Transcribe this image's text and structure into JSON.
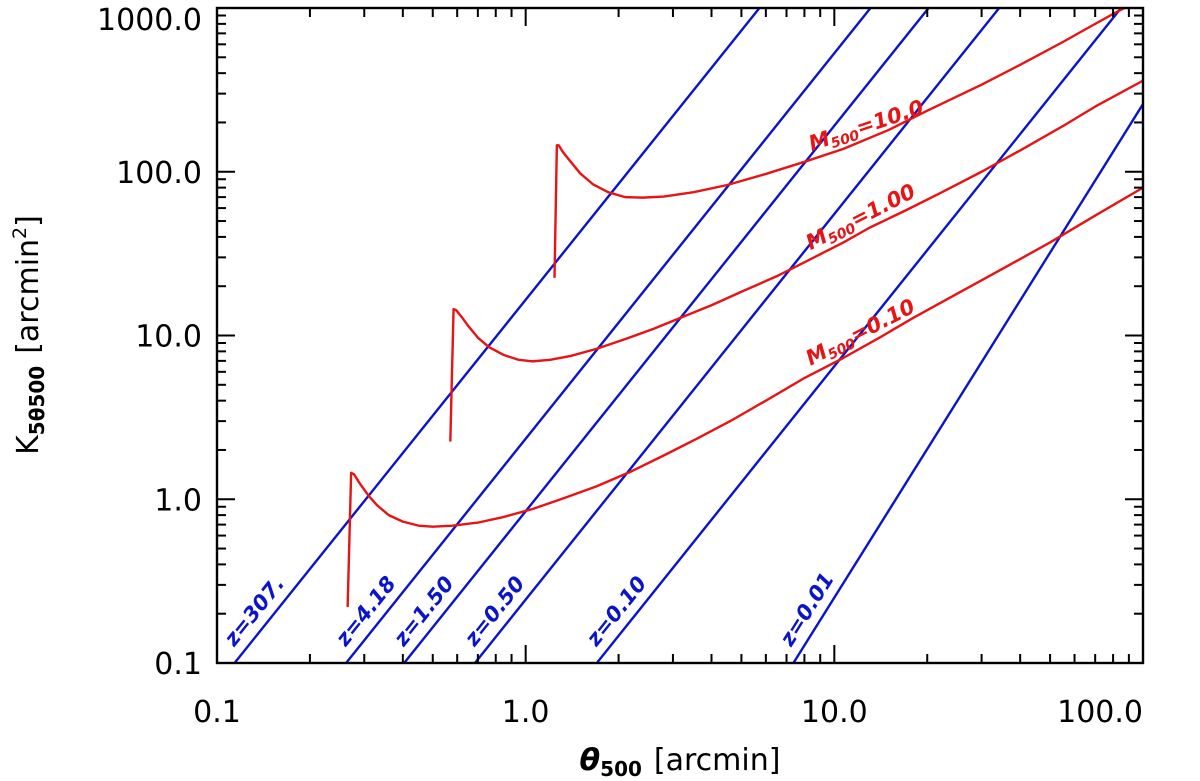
{
  "chart_data": {
    "type": "line",
    "xscale": "log",
    "yscale": "log",
    "xlim": [
      0.1,
      100.0
    ],
    "ylim": [
      0.1,
      1000.0
    ],
    "x_ticks": [
      "0.1",
      "1.0",
      "10.0",
      "100.0"
    ],
    "y_ticks": [
      "0.1",
      "1.0",
      "10.0",
      "100.0",
      "1000.0"
    ],
    "xlabel": {
      "symbol": "θ",
      "sub": "500",
      "unit": "[arcmin]"
    },
    "ylabel": {
      "symbol": "K",
      "sub": "5θ500",
      "unit": "[arcmin",
      "sup": "2",
      "close": "]"
    },
    "colors": {
      "redshift": "#0a14c8",
      "mass": "#e61414",
      "axis": "#000000"
    },
    "redshift_lines": [
      {
        "label": "z=307.",
        "x": [
          0.114,
          5.72
        ],
        "y": [
          0.1,
          1000.0
        ]
      },
      {
        "label": "z=4.18",
        "x": [
          0.262,
          13.1
        ],
        "y": [
          0.1,
          1000.0
        ]
      },
      {
        "label": "z=1.50",
        "x": [
          0.404,
          20.2
        ],
        "y": [
          0.1,
          1000.0
        ]
      },
      {
        "label": "z=0.50",
        "x": [
          0.685,
          34.2
        ],
        "y": [
          0.1,
          1000.0
        ]
      },
      {
        "label": "z=0.10",
        "x": [
          1.7,
          84.9
        ],
        "y": [
          0.1,
          1000.0
        ]
      },
      {
        "label": "z=0.01",
        "x": [
          7.37,
          100.0
        ],
        "y": [
          0.1,
          259.0
        ]
      }
    ],
    "mass_curves": [
      {
        "label_prefix": "M",
        "label_sub": "500",
        "label_value": "=10.0",
        "x": [
          1.24,
          1.262,
          1.28,
          1.32,
          1.4,
          1.5,
          1.65,
          1.85,
          2.1,
          2.4,
          2.8,
          3.5,
          4.5,
          6.0,
          8.0,
          10.7,
          15.0,
          20.0,
          30.0,
          40.0,
          55.0,
          70.0,
          80.0,
          100.0
        ],
        "y": [
          22.5,
          145.0,
          145.0,
          132.0,
          115.0,
          98.0,
          84.0,
          75.0,
          70.0,
          69.5,
          70.5,
          75.0,
          83.0,
          97.0,
          115.0,
          138.0,
          180.0,
          236.0,
          340.0,
          450.0,
          620.0,
          800.0,
          920.0,
          1150.0
        ]
      },
      {
        "label_prefix": "M",
        "label_sub": "500",
        "label_value": "=1.00",
        "x": [
          0.57,
          0.584,
          0.595,
          0.62,
          0.65,
          0.7,
          0.76,
          0.85,
          0.95,
          1.05,
          1.2,
          1.4,
          1.7,
          2.1,
          2.6,
          3.2,
          4.0,
          5.0,
          6.5,
          8.0,
          10.7,
          13.0,
          17.0,
          22.0,
          30.0,
          40.0,
          55.0,
          70.0,
          100.0
        ],
        "y": [
          2.25,
          14.5,
          14.3,
          13.0,
          11.5,
          9.7,
          8.5,
          7.6,
          7.1,
          6.95,
          7.1,
          7.5,
          8.3,
          9.5,
          11.0,
          12.9,
          15.3,
          18.5,
          23.0,
          28.0,
          37.0,
          45.5,
          58.0,
          74.0,
          100.0,
          135.0,
          190.0,
          250.0,
          360.0
        ]
      },
      {
        "label_prefix": "M",
        "label_sub": "500",
        "label_value": "=0.10",
        "x": [
          0.265,
          0.272,
          0.278,
          0.29,
          0.31,
          0.33,
          0.36,
          0.4,
          0.45,
          0.5,
          0.58,
          0.7,
          0.85,
          1.05,
          1.3,
          1.7,
          2.2,
          2.8,
          3.6,
          4.6,
          6.0,
          8.0,
          10.7,
          14.0,
          18.0,
          25.0,
          35.0,
          50.0,
          70.0,
          100.0
        ],
        "y": [
          0.22,
          1.45,
          1.42,
          1.25,
          1.05,
          0.92,
          0.8,
          0.73,
          0.69,
          0.68,
          0.69,
          0.72,
          0.78,
          0.87,
          1.0,
          1.2,
          1.48,
          1.85,
          2.35,
          3.0,
          4.0,
          5.5,
          7.3,
          9.7,
          12.8,
          18.0,
          25.5,
          37.0,
          54.0,
          80.0
        ]
      }
    ]
  }
}
